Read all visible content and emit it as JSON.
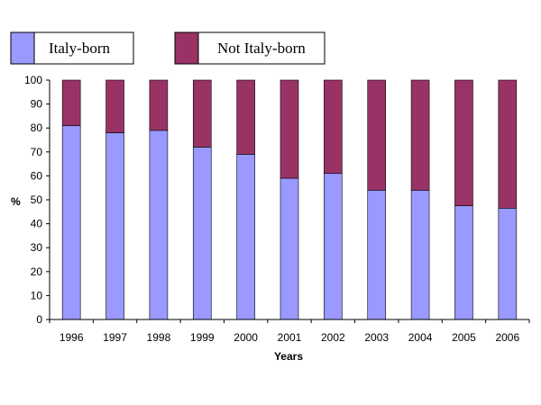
{
  "chart_data": {
    "type": "bar",
    "stacked": true,
    "categories": [
      "1996",
      "1997",
      "1998",
      "1999",
      "2000",
      "2001",
      "2002",
      "2003",
      "2004",
      "2005",
      "2006"
    ],
    "series": [
      {
        "name": "Italy-born",
        "color": "#9999ff",
        "values": [
          81,
          78,
          79,
          72,
          69,
          59,
          61,
          54,
          54,
          47.5,
          46.5
        ]
      },
      {
        "name": "Not Italy-born",
        "color": "#993366",
        "values": [
          19,
          22,
          21,
          28,
          31,
          41,
          39,
          46,
          46,
          52.5,
          53.5
        ]
      }
    ],
    "xlabel": "Years",
    "ylabel": "%",
    "ylim": [
      0,
      100
    ],
    "yticks": [
      "0",
      "10",
      "20",
      "30",
      "40",
      "50",
      "60",
      "70",
      "80",
      "90",
      "100"
    ],
    "grid": false,
    "legend_position": "top-left"
  }
}
